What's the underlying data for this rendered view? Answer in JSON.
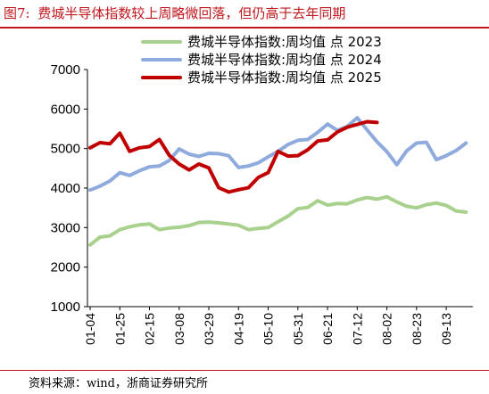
{
  "figure": {
    "number": "图7:",
    "title": "费城半导体指数较上周略微回落，但仍高于去年同期",
    "source": "资料来源：wind，浙商证券研究所"
  },
  "chart_data": {
    "type": "line",
    "ylim": [
      1000,
      7000
    ],
    "yticks": [
      1000,
      2000,
      3000,
      4000,
      5000,
      6000,
      7000
    ],
    "xticks": [
      "01-04",
      "01-25",
      "02-15",
      "03-08",
      "03-29",
      "04-19",
      "05-10",
      "05-31",
      "06-21",
      "07-12",
      "08-02",
      "08-23",
      "09-13"
    ],
    "grid": false,
    "legend_position": "top-right",
    "series": [
      {
        "name": "费城半导体指数:周均值  点  2023",
        "color": "#a9d18e",
        "points": [
          [
            "01-04",
            2560
          ],
          [
            "01-11",
            2760
          ],
          [
            "01-18",
            2790
          ],
          [
            "01-25",
            2950
          ],
          [
            "02-01",
            3020
          ],
          [
            "02-08",
            3070
          ],
          [
            "02-15",
            3090
          ],
          [
            "02-22",
            2950
          ],
          [
            "03-01",
            2990
          ],
          [
            "03-08",
            3010
          ],
          [
            "03-15",
            3050
          ],
          [
            "03-22",
            3130
          ],
          [
            "03-29",
            3140
          ],
          [
            "04-05",
            3120
          ],
          [
            "04-12",
            3090
          ],
          [
            "04-19",
            3060
          ],
          [
            "04-26",
            2950
          ],
          [
            "05-03",
            2980
          ],
          [
            "05-10",
            3000
          ],
          [
            "05-17",
            3150
          ],
          [
            "05-24",
            3290
          ],
          [
            "05-31",
            3480
          ],
          [
            "06-07",
            3510
          ],
          [
            "06-14",
            3680
          ],
          [
            "06-21",
            3570
          ],
          [
            "06-28",
            3610
          ],
          [
            "07-05",
            3600
          ],
          [
            "07-12",
            3700
          ],
          [
            "07-19",
            3760
          ],
          [
            "07-26",
            3720
          ],
          [
            "08-02",
            3780
          ],
          [
            "08-09",
            3650
          ],
          [
            "08-16",
            3540
          ],
          [
            "08-23",
            3500
          ],
          [
            "08-30",
            3580
          ],
          [
            "09-06",
            3620
          ],
          [
            "09-13",
            3560
          ],
          [
            "09-20",
            3420
          ],
          [
            "09-27",
            3390
          ]
        ]
      },
      {
        "name": "费城半导体指数:周均值  点  2024",
        "color": "#8faadc",
        "points": [
          [
            "01-04",
            3950
          ],
          [
            "01-11",
            4050
          ],
          [
            "01-18",
            4180
          ],
          [
            "01-25",
            4390
          ],
          [
            "02-01",
            4320
          ],
          [
            "02-08",
            4440
          ],
          [
            "02-15",
            4540
          ],
          [
            "02-22",
            4560
          ],
          [
            "03-01",
            4700
          ],
          [
            "03-08",
            4990
          ],
          [
            "03-15",
            4860
          ],
          [
            "03-22",
            4800
          ],
          [
            "03-29",
            4880
          ],
          [
            "04-05",
            4870
          ],
          [
            "04-12",
            4820
          ],
          [
            "04-19",
            4520
          ],
          [
            "04-26",
            4560
          ],
          [
            "05-03",
            4640
          ],
          [
            "05-10",
            4790
          ],
          [
            "05-17",
            4930
          ],
          [
            "05-24",
            5100
          ],
          [
            "05-31",
            5210
          ],
          [
            "06-07",
            5230
          ],
          [
            "06-14",
            5410
          ],
          [
            "06-21",
            5620
          ],
          [
            "06-28",
            5460
          ],
          [
            "07-05",
            5560
          ],
          [
            "07-12",
            5780
          ],
          [
            "07-19",
            5470
          ],
          [
            "07-26",
            5170
          ],
          [
            "08-02",
            4920
          ],
          [
            "08-09",
            4590
          ],
          [
            "08-16",
            4940
          ],
          [
            "08-23",
            5140
          ],
          [
            "08-30",
            5160
          ],
          [
            "09-06",
            4720
          ],
          [
            "09-13",
            4820
          ],
          [
            "09-20",
            4950
          ],
          [
            "09-27",
            5140
          ]
        ]
      },
      {
        "name": "费城半导体指数:周均值  点  2025",
        "color": "#c00000",
        "points": [
          [
            "01-04",
            5020
          ],
          [
            "01-11",
            5150
          ],
          [
            "01-18",
            5120
          ],
          [
            "01-25",
            5390
          ],
          [
            "02-01",
            4930
          ],
          [
            "02-08",
            5020
          ],
          [
            "02-15",
            5050
          ],
          [
            "02-22",
            5230
          ],
          [
            "03-01",
            4830
          ],
          [
            "03-08",
            4610
          ],
          [
            "03-15",
            4460
          ],
          [
            "03-22",
            4610
          ],
          [
            "03-29",
            4510
          ],
          [
            "04-05",
            4010
          ],
          [
            "04-12",
            3900
          ],
          [
            "04-19",
            3960
          ],
          [
            "04-26",
            4010
          ],
          [
            "05-03",
            4270
          ],
          [
            "05-10",
            4390
          ],
          [
            "05-17",
            4930
          ],
          [
            "05-24",
            4810
          ],
          [
            "05-31",
            4820
          ],
          [
            "06-07",
            4970
          ],
          [
            "06-14",
            5190
          ],
          [
            "06-21",
            5220
          ],
          [
            "06-28",
            5420
          ],
          [
            "07-05",
            5540
          ],
          [
            "07-12",
            5610
          ],
          [
            "07-19",
            5680
          ],
          [
            "07-26",
            5660
          ]
        ]
      }
    ]
  }
}
